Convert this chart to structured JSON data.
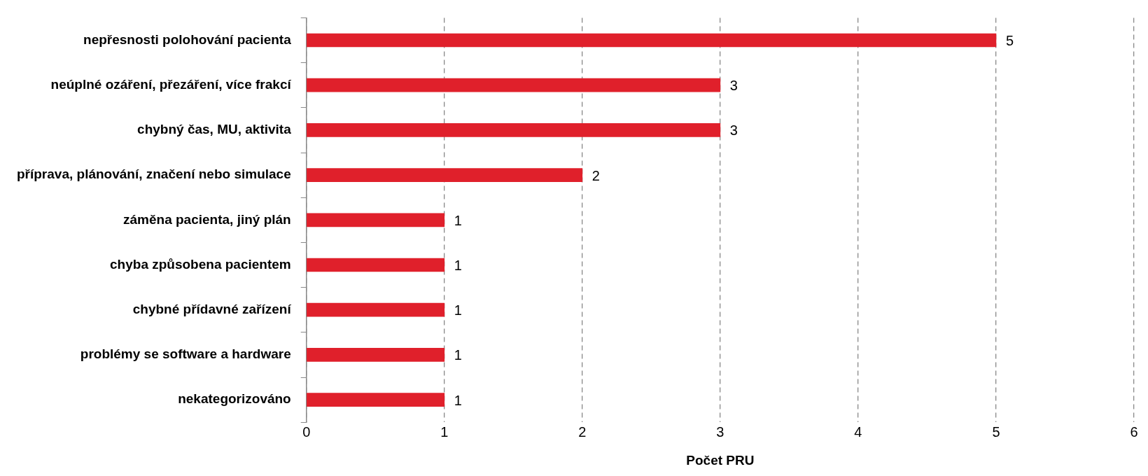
{
  "chart_data": {
    "type": "bar",
    "orientation": "horizontal",
    "xlabel": "Počet PRU",
    "categories": [
      "nepřesnosti polohování pacienta",
      "neúplné ozáření, přezáření, více frakcí",
      "chybný čas, MU, aktivita",
      "příprava, plánování, značení nebo simulace",
      "záměna pacienta, jiný plán",
      "chyba způsobena pacientem",
      "chybné přídavné zařízení",
      "problémy se software a hardware",
      "nekategorizováno"
    ],
    "values": [
      5,
      3,
      3,
      2,
      1,
      1,
      1,
      1,
      1
    ],
    "color": "#e0202b",
    "xlim": [
      0,
      6
    ],
    "xticks": [
      0,
      1,
      2,
      3,
      4,
      5,
      6
    ],
    "grid": "x",
    "data_labels": true,
    "legend": false
  }
}
